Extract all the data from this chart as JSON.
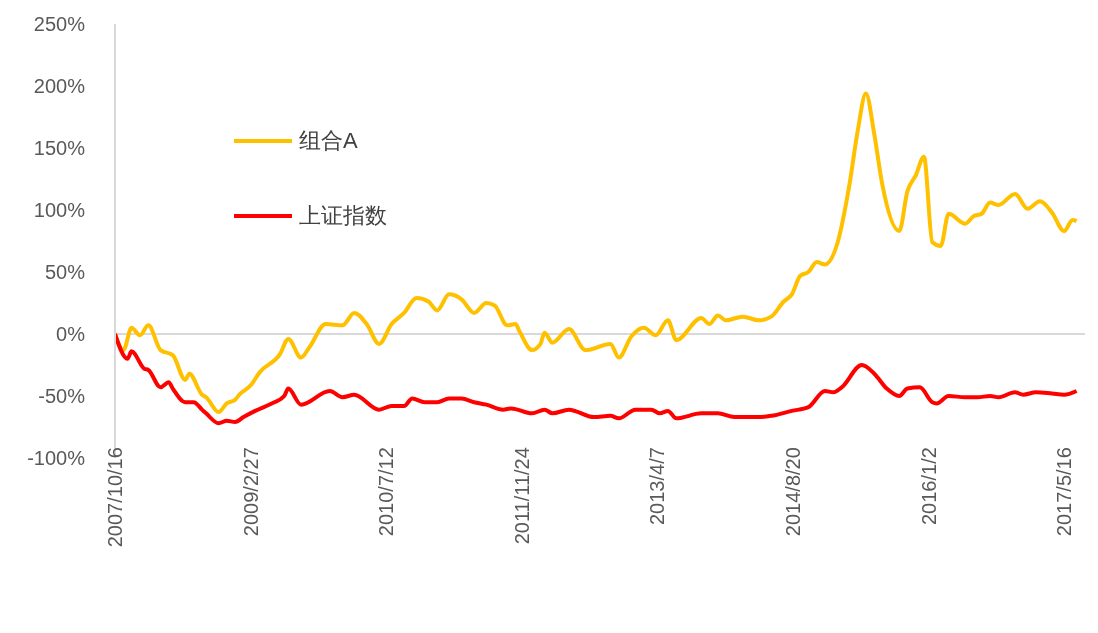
{
  "chart_data": {
    "type": "line",
    "legend": "top left",
    "marker": "none",
    "xlim": [
      "2007-10-16",
      "2017-08-01"
    ],
    "xticks": [
      {
        "value": "2007-10-16",
        "label": "2007/10/16"
      },
      {
        "value": "2009-02-27",
        "label": "2009/2/27"
      },
      {
        "value": "2010-07-12",
        "label": "2010/7/12"
      },
      {
        "value": "2011-11-24",
        "label": "2011/11/24"
      },
      {
        "value": "2013-04-07",
        "label": "2013/4/7"
      },
      {
        "value": "2014-08-20",
        "label": "2014/8/20"
      },
      {
        "value": "2016-01-02",
        "label": "2016/1/2"
      },
      {
        "value": "2017-05-16",
        "label": "2017/5/16"
      }
    ],
    "ylim": [
      -100,
      250
    ],
    "yticks": [
      {
        "value": -100,
        "label": "-100%"
      },
      {
        "value": -50,
        "label": "-50%"
      },
      {
        "value": 0,
        "label": "0%"
      },
      {
        "value": 50,
        "label": "50%"
      },
      {
        "value": 100,
        "label": "100%"
      },
      {
        "value": 150,
        "label": "150%"
      },
      {
        "value": 200,
        "label": "200%"
      },
      {
        "value": 250,
        "label": "250%"
      }
    ],
    "series": [
      {
        "name": "组合A",
        "color": "#ffc000",
        "x": [
          "2007-10-16",
          "2007-11-16",
          "2007-12-16",
          "2008-01-16",
          "2008-02-16",
          "2008-04-01",
          "2008-05-16",
          "2008-07-01",
          "2008-07-16",
          "2008-09-01",
          "2008-09-16",
          "2008-11-01",
          "2008-12-01",
          "2009-01-01",
          "2009-01-16",
          "2009-03-01",
          "2009-04-01",
          "2009-06-16",
          "2009-07-16",
          "2009-09-01",
          "2009-10-01",
          "2009-12-01",
          "2010-02-01",
          "2010-03-16",
          "2010-05-01",
          "2010-06-16",
          "2010-08-01",
          "2010-09-16",
          "2010-11-01",
          "2010-12-16",
          "2011-01-16",
          "2011-03-01",
          "2011-04-16",
          "2011-06-01",
          "2011-07-16",
          "2011-08-16",
          "2011-10-01",
          "2011-11-01",
          "2011-11-16",
          "2012-01-01",
          "2012-02-01",
          "2012-02-16",
          "2012-03-16",
          "2012-05-16",
          "2012-07-16",
          "2012-10-16",
          "2012-11-16",
          "2013-01-01",
          "2013-02-16",
          "2013-04-01",
          "2013-05-16",
          "2013-06-16",
          "2013-09-16",
          "2013-10-16",
          "2013-11-16",
          "2013-12-16",
          "2014-02-16",
          "2014-04-16",
          "2014-06-01",
          "2014-07-16",
          "2014-08-16",
          "2014-09-16",
          "2014-10-16",
          "2014-11-16",
          "2014-12-16",
          "2015-02-01",
          "2015-03-16",
          "2015-04-16",
          "2015-05-16",
          "2015-06-16",
          "2015-07-16",
          "2015-09-16",
          "2015-10-16",
          "2015-11-16",
          "2015-12-16",
          "2016-01-16",
          "2016-02-16",
          "2016-03-16",
          "2016-05-16",
          "2016-06-16",
          "2016-07-16",
          "2016-08-16",
          "2016-09-16",
          "2016-11-16",
          "2017-01-01",
          "2017-02-16",
          "2017-04-01",
          "2017-05-16",
          "2017-06-16",
          "2017-07-01"
        ],
        "values": [
          0,
          -13,
          5,
          -1,
          7,
          -13,
          -17,
          -37,
          -32,
          -49,
          -51,
          -63,
          -56,
          -53,
          -49,
          -41,
          -31,
          -16,
          -4,
          -19,
          -11,
          8,
          7,
          17,
          8,
          -8,
          8,
          17,
          29,
          26,
          19,
          32,
          28,
          17,
          25,
          23,
          7,
          8,
          2,
          -13,
          -8,
          1,
          -7,
          4,
          -13,
          -8,
          -19,
          -2,
          5,
          -1,
          11,
          -5,
          13,
          8,
          15,
          11,
          14,
          11,
          14,
          26,
          32,
          47,
          50,
          58,
          56,
          74,
          120,
          164,
          194,
          161,
          120,
          83,
          115,
          128,
          143,
          74,
          71,
          97,
          89,
          95,
          97,
          106,
          104,
          113,
          101,
          107,
          98,
          83,
          92,
          91
        ]
      },
      {
        "name": "上证指数",
        "color": "#ff0000",
        "x": [
          "2007-10-16",
          "2007-12-01",
          "2007-12-16",
          "2008-02-01",
          "2008-02-16",
          "2008-04-01",
          "2008-05-01",
          "2008-05-16",
          "2008-07-01",
          "2008-08-01",
          "2008-09-01",
          "2008-09-16",
          "2008-11-01",
          "2008-12-01",
          "2009-01-01",
          "2009-02-01",
          "2009-03-16",
          "2009-05-16",
          "2009-07-01",
          "2009-07-16",
          "2009-09-01",
          "2009-12-16",
          "2010-02-01",
          "2010-03-16",
          "2010-06-16",
          "2010-08-01",
          "2010-09-16",
          "2010-10-16",
          "2010-12-01",
          "2011-01-16",
          "2011-03-01",
          "2011-04-16",
          "2011-06-01",
          "2011-07-16",
          "2011-09-16",
          "2011-10-16",
          "2012-01-01",
          "2012-02-16",
          "2012-03-16",
          "2012-05-16",
          "2012-08-16",
          "2012-10-16",
          "2012-11-16",
          "2013-01-16",
          "2013-03-16",
          "2013-04-16",
          "2013-05-16",
          "2013-06-16",
          "2013-09-16",
          "2013-11-16",
          "2014-01-16",
          "2014-04-16",
          "2014-06-01",
          "2014-08-16",
          "2014-10-16",
          "2014-12-16",
          "2015-01-16",
          "2015-02-16",
          "2015-05-01",
          "2015-06-16",
          "2015-08-01",
          "2015-09-16",
          "2015-10-16",
          "2015-12-01",
          "2016-01-16",
          "2016-02-01",
          "2016-03-16",
          "2016-05-16",
          "2016-07-01",
          "2016-08-16",
          "2016-09-16",
          "2016-11-16",
          "2016-12-16",
          "2017-02-01",
          "2017-04-01",
          "2017-05-16",
          "2017-07-01"
        ],
        "values": [
          0,
          -20,
          -14,
          -28,
          -29,
          -43,
          -39,
          -44,
          -55,
          -55,
          -61,
          -64,
          -72,
          -70,
          -71,
          -67,
          -62,
          -56,
          -50,
          -44,
          -57,
          -46,
          -51,
          -49,
          -61,
          -58,
          -58,
          -52,
          -55,
          -55,
          -52,
          -52,
          -55,
          -57,
          -61,
          -60,
          -64,
          -61,
          -64,
          -61,
          -67,
          -66,
          -68,
          -61,
          -61,
          -64,
          -62,
          -68,
          -64,
          -64,
          -67,
          -67,
          -66,
          -62,
          -59,
          -46,
          -47,
          -43,
          -25,
          -32,
          -44,
          -50,
          -44,
          -43,
          -55,
          -56,
          -50,
          -51,
          -51,
          -50,
          -51,
          -47,
          -49,
          -47,
          -48,
          -49,
          -46
        ]
      }
    ]
  }
}
